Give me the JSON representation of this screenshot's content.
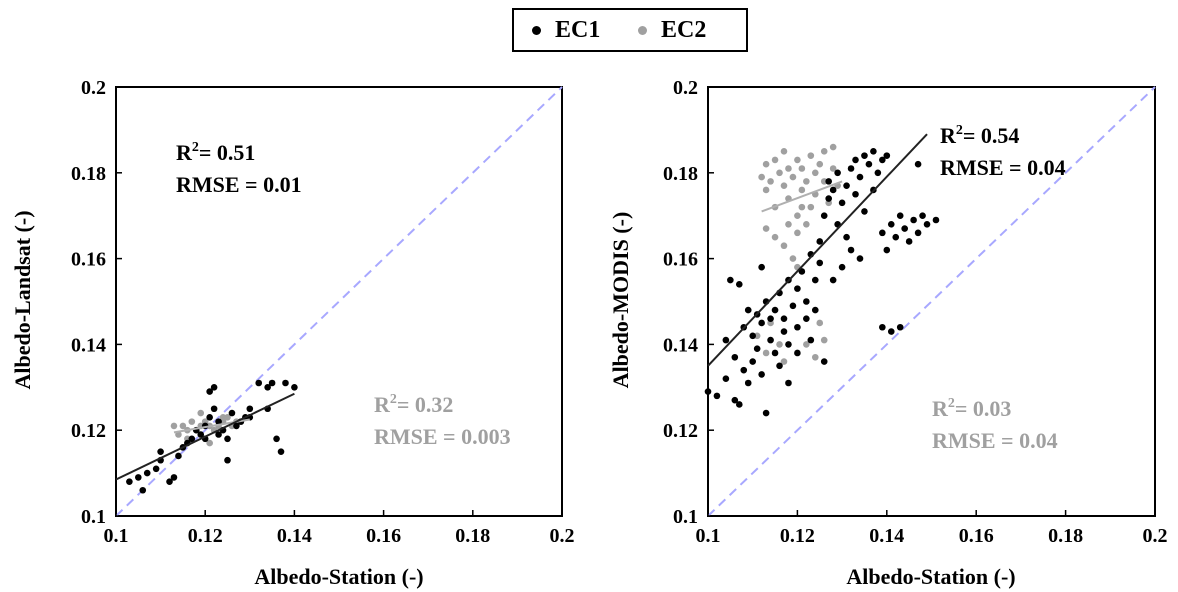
{
  "legend": {
    "items": [
      {
        "label": "EC1",
        "color": "#000000"
      },
      {
        "label": "EC2",
        "color": "#a0a0a0"
      }
    ]
  },
  "chart_data": [
    {
      "type": "scatter",
      "xlabel": "Albedo-Station (-)",
      "ylabel": "Albedo-Landsat (-)",
      "xlim": [
        0.1,
        0.2
      ],
      "ylim": [
        0.1,
        0.2
      ],
      "xticks": [
        "0.1",
        "0.12",
        "0.14",
        "0.16",
        "0.18",
        "0.2"
      ],
      "yticks": [
        "0.1",
        "0.12",
        "0.14",
        "0.16",
        "0.18",
        "0.2"
      ],
      "identity_line": {
        "color": "#a8a8ff",
        "style": "dashed"
      },
      "series": [
        {
          "name": "EC1",
          "color": "#000000",
          "points": [
            [
              0.103,
              0.108
            ],
            [
              0.105,
              0.109
            ],
            [
              0.106,
              0.106
            ],
            [
              0.107,
              0.11
            ],
            [
              0.109,
              0.111
            ],
            [
              0.11,
              0.113
            ],
            [
              0.11,
              0.115
            ],
            [
              0.112,
              0.108
            ],
            [
              0.113,
              0.109
            ],
            [
              0.114,
              0.114
            ],
            [
              0.115,
              0.116
            ],
            [
              0.116,
              0.117
            ],
            [
              0.117,
              0.118
            ],
            [
              0.118,
              0.12
            ],
            [
              0.119,
              0.119
            ],
            [
              0.12,
              0.118
            ],
            [
              0.12,
              0.121
            ],
            [
              0.121,
              0.123
            ],
            [
              0.121,
              0.129
            ],
            [
              0.122,
              0.13
            ],
            [
              0.122,
              0.125
            ],
            [
              0.123,
              0.122
            ],
            [
              0.123,
              0.119
            ],
            [
              0.124,
              0.12
            ],
            [
              0.125,
              0.113
            ],
            [
              0.125,
              0.118
            ],
            [
              0.126,
              0.124
            ],
            [
              0.127,
              0.121
            ],
            [
              0.128,
              0.122
            ],
            [
              0.129,
              0.123
            ],
            [
              0.13,
              0.123
            ],
            [
              0.132,
              0.131
            ],
            [
              0.134,
              0.13
            ],
            [
              0.134,
              0.125
            ],
            [
              0.135,
              0.131
            ],
            [
              0.136,
              0.118
            ],
            [
              0.137,
              0.115
            ],
            [
              0.138,
              0.131
            ],
            [
              0.14,
              0.13
            ],
            [
              0.13,
              0.125
            ]
          ],
          "fit": {
            "x": [
              0.1,
              0.14
            ],
            "y": [
              0.1085,
              0.1285
            ]
          }
        },
        {
          "name": "EC2",
          "color": "#a0a0a0",
          "points": [
            [
              0.113,
              0.121
            ],
            [
              0.114,
              0.119
            ],
            [
              0.115,
              0.121
            ],
            [
              0.116,
              0.12
            ],
            [
              0.117,
              0.122
            ],
            [
              0.118,
              0.12
            ],
            [
              0.119,
              0.121
            ],
            [
              0.12,
              0.122
            ],
            [
              0.121,
              0.121
            ],
            [
              0.122,
              0.12
            ],
            [
              0.123,
              0.121
            ],
            [
              0.124,
              0.122
            ],
            [
              0.125,
              0.123
            ],
            [
              0.126,
              0.121
            ],
            [
              0.127,
              0.122
            ],
            [
              0.128,
              0.122
            ],
            [
              0.116,
              0.118
            ],
            [
              0.119,
              0.124
            ],
            [
              0.121,
              0.117
            ],
            [
              0.124,
              0.123
            ]
          ],
          "fit": {
            "x": [
              0.113,
              0.13
            ],
            "y": [
              0.1195,
              0.1225
            ]
          }
        }
      ],
      "annotations": [
        {
          "r2": "0.51",
          "rmse": "RMSE = 0.01",
          "color": "#000000"
        },
        {
          "r2": "0.32",
          "rmse": "RMSE = 0.003",
          "color": "#a0a0a0"
        }
      ]
    },
    {
      "type": "scatter",
      "xlabel": "Albedo-Station (-)",
      "ylabel": "Albedo-MODIS (-)",
      "xlim": [
        0.1,
        0.2
      ],
      "ylim": [
        0.1,
        0.2
      ],
      "xticks": [
        "0.1",
        "0.12",
        "0.14",
        "0.16",
        "0.18",
        "0.2"
      ],
      "yticks": [
        "0.1",
        "0.12",
        "0.14",
        "0.16",
        "0.18",
        "0.2"
      ],
      "identity_line": {
        "color": "#a8a8ff",
        "style": "dashed"
      },
      "series": [
        {
          "name": "EC1",
          "color": "#000000",
          "points": [
            [
              0.1,
              0.129
            ],
            [
              0.102,
              0.128
            ],
            [
              0.104,
              0.132
            ],
            [
              0.106,
              0.137
            ],
            [
              0.106,
              0.127
            ],
            [
              0.107,
              0.126
            ],
            [
              0.108,
              0.134
            ],
            [
              0.108,
              0.144
            ],
            [
              0.109,
              0.131
            ],
            [
              0.11,
              0.136
            ],
            [
              0.11,
              0.142
            ],
            [
              0.111,
              0.147
            ],
            [
              0.111,
              0.139
            ],
            [
              0.112,
              0.133
            ],
            [
              0.112,
              0.145
            ],
            [
              0.113,
              0.15
            ],
            [
              0.113,
              0.124
            ],
            [
              0.114,
              0.141
            ],
            [
              0.115,
              0.148
            ],
            [
              0.115,
              0.138
            ],
            [
              0.116,
              0.152
            ],
            [
              0.117,
              0.146
            ],
            [
              0.117,
              0.143
            ],
            [
              0.118,
              0.155
            ],
            [
              0.118,
              0.14
            ],
            [
              0.119,
              0.149
            ],
            [
              0.12,
              0.153
            ],
            [
              0.12,
              0.144
            ],
            [
              0.121,
              0.157
            ],
            [
              0.122,
              0.15
            ],
            [
              0.122,
              0.146
            ],
            [
              0.123,
              0.161
            ],
            [
              0.124,
              0.155
            ],
            [
              0.124,
              0.148
            ],
            [
              0.125,
              0.159
            ],
            [
              0.125,
              0.164
            ],
            [
              0.126,
              0.17
            ],
            [
              0.127,
              0.174
            ],
            [
              0.127,
              0.178
            ],
            [
              0.128,
              0.176
            ],
            [
              0.129,
              0.168
            ],
            [
              0.129,
              0.18
            ],
            [
              0.13,
              0.173
            ],
            [
              0.131,
              0.177
            ],
            [
              0.131,
              0.165
            ],
            [
              0.132,
              0.181
            ],
            [
              0.133,
              0.175
            ],
            [
              0.133,
              0.183
            ],
            [
              0.134,
              0.179
            ],
            [
              0.135,
              0.171
            ],
            [
              0.135,
              0.184
            ],
            [
              0.136,
              0.182
            ],
            [
              0.137,
              0.185
            ],
            [
              0.137,
              0.176
            ],
            [
              0.138,
              0.18
            ],
            [
              0.139,
              0.183
            ],
            [
              0.139,
              0.166
            ],
            [
              0.14,
              0.184
            ],
            [
              0.14,
              0.162
            ],
            [
              0.141,
              0.168
            ],
            [
              0.142,
              0.165
            ],
            [
              0.143,
              0.17
            ],
            [
              0.144,
              0.167
            ],
            [
              0.145,
              0.164
            ],
            [
              0.146,
              0.169
            ],
            [
              0.147,
              0.166
            ],
            [
              0.147,
              0.182
            ],
            [
              0.148,
              0.17
            ],
            [
              0.149,
              0.168
            ],
            [
              0.151,
              0.169
            ],
            [
              0.139,
              0.144
            ],
            [
              0.141,
              0.143
            ],
            [
              0.143,
              0.144
            ],
            [
              0.104,
              0.141
            ],
            [
              0.105,
              0.155
            ],
            [
              0.107,
              0.154
            ],
            [
              0.109,
              0.148
            ],
            [
              0.112,
              0.158
            ],
            [
              0.114,
              0.146
            ],
            [
              0.116,
              0.135
            ],
            [
              0.118,
              0.131
            ],
            [
              0.12,
              0.138
            ],
            [
              0.123,
              0.141
            ],
            [
              0.126,
              0.136
            ],
            [
              0.128,
              0.155
            ],
            [
              0.13,
              0.158
            ],
            [
              0.132,
              0.162
            ],
            [
              0.134,
              0.16
            ]
          ],
          "fit": {
            "x": [
              0.1,
              0.149
            ],
            "y": [
              0.135,
              0.189
            ]
          }
        },
        {
          "name": "EC2",
          "color": "#a0a0a0",
          "points": [
            [
              0.112,
              0.179
            ],
            [
              0.113,
              0.182
            ],
            [
              0.113,
              0.176
            ],
            [
              0.114,
              0.178
            ],
            [
              0.115,
              0.183
            ],
            [
              0.115,
              0.172
            ],
            [
              0.116,
              0.18
            ],
            [
              0.117,
              0.177
            ],
            [
              0.117,
              0.185
            ],
            [
              0.118,
              0.181
            ],
            [
              0.118,
              0.174
            ],
            [
              0.119,
              0.179
            ],
            [
              0.12,
              0.183
            ],
            [
              0.12,
              0.17
            ],
            [
              0.121,
              0.176
            ],
            [
              0.121,
              0.181
            ],
            [
              0.122,
              0.178
            ],
            [
              0.123,
              0.184
            ],
            [
              0.123,
              0.172
            ],
            [
              0.124,
              0.18
            ],
            [
              0.124,
              0.175
            ],
            [
              0.125,
              0.182
            ],
            [
              0.126,
              0.178
            ],
            [
              0.126,
              0.185
            ],
            [
              0.127,
              0.173
            ],
            [
              0.128,
              0.181
            ],
            [
              0.128,
              0.186
            ],
            [
              0.129,
              0.177
            ],
            [
              0.113,
              0.167
            ],
            [
              0.115,
              0.165
            ],
            [
              0.117,
              0.163
            ],
            [
              0.118,
              0.168
            ],
            [
              0.119,
              0.16
            ],
            [
              0.12,
              0.166
            ],
            [
              0.111,
              0.142
            ],
            [
              0.113,
              0.138
            ],
            [
              0.114,
              0.145
            ],
            [
              0.116,
              0.14
            ],
            [
              0.117,
              0.136
            ],
            [
              0.122,
              0.14
            ],
            [
              0.124,
              0.137
            ],
            [
              0.125,
              0.145
            ],
            [
              0.126,
              0.141
            ],
            [
              0.12,
              0.158
            ],
            [
              0.121,
              0.172
            ],
            [
              0.122,
              0.168
            ]
          ],
          "fit": {
            "x": [
              0.112,
              0.13
            ],
            "y": [
              0.171,
              0.178
            ]
          }
        }
      ],
      "annotations": [
        {
          "r2": "0.54",
          "rmse": "RMSE = 0.04",
          "color": "#000000"
        },
        {
          "r2": "0.03",
          "rmse": "RMSE = 0.04",
          "color": "#a0a0a0"
        }
      ]
    }
  ]
}
